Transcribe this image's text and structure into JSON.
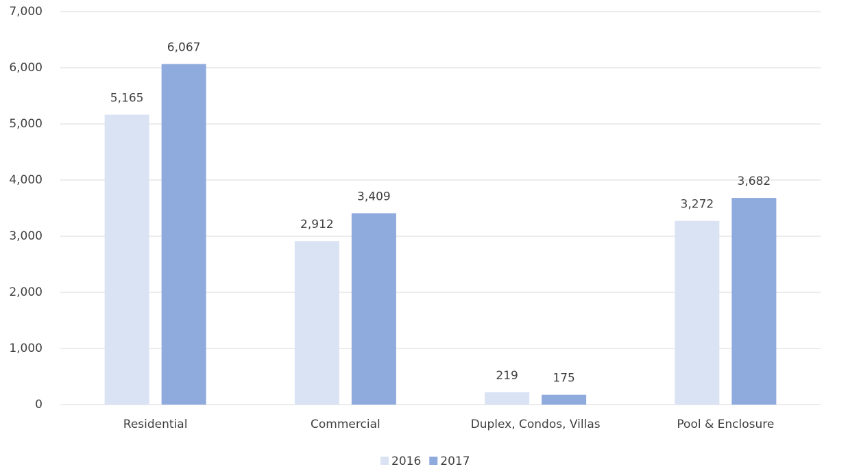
{
  "chart_data": {
    "type": "bar",
    "categories": [
      "Residential",
      "Commercial",
      "Duplex, Condos, Villas",
      "Pool & Enclosure"
    ],
    "series": [
      {
        "name": "2016",
        "color": "#dae3f3",
        "values": [
          5165,
          2912,
          219,
          3272
        ],
        "value_labels": [
          "5,165",
          "2,912",
          "219",
          "3,272"
        ]
      },
      {
        "name": "2017",
        "color": "#8faadc",
        "values": [
          6067,
          3409,
          175,
          3682
        ],
        "value_labels": [
          "6,067",
          "3,409",
          "175",
          "3,682"
        ]
      }
    ],
    "ylim": [
      0,
      7000
    ],
    "yticks": [
      0,
      {
        "value": 1000,
        "label": "1,000"
      },
      {
        "value": 2000,
        "label": "2,000"
      },
      {
        "value": 3000,
        "label": "3,000"
      },
      {
        "value": 4000,
        "label": "4,000"
      },
      {
        "value": 5000,
        "label": "5,000"
      },
      {
        "value": 6000,
        "label": "6,000"
      },
      {
        "value": 7000,
        "label": "7,000"
      }
    ],
    "grid": true,
    "legend": "bottom"
  }
}
